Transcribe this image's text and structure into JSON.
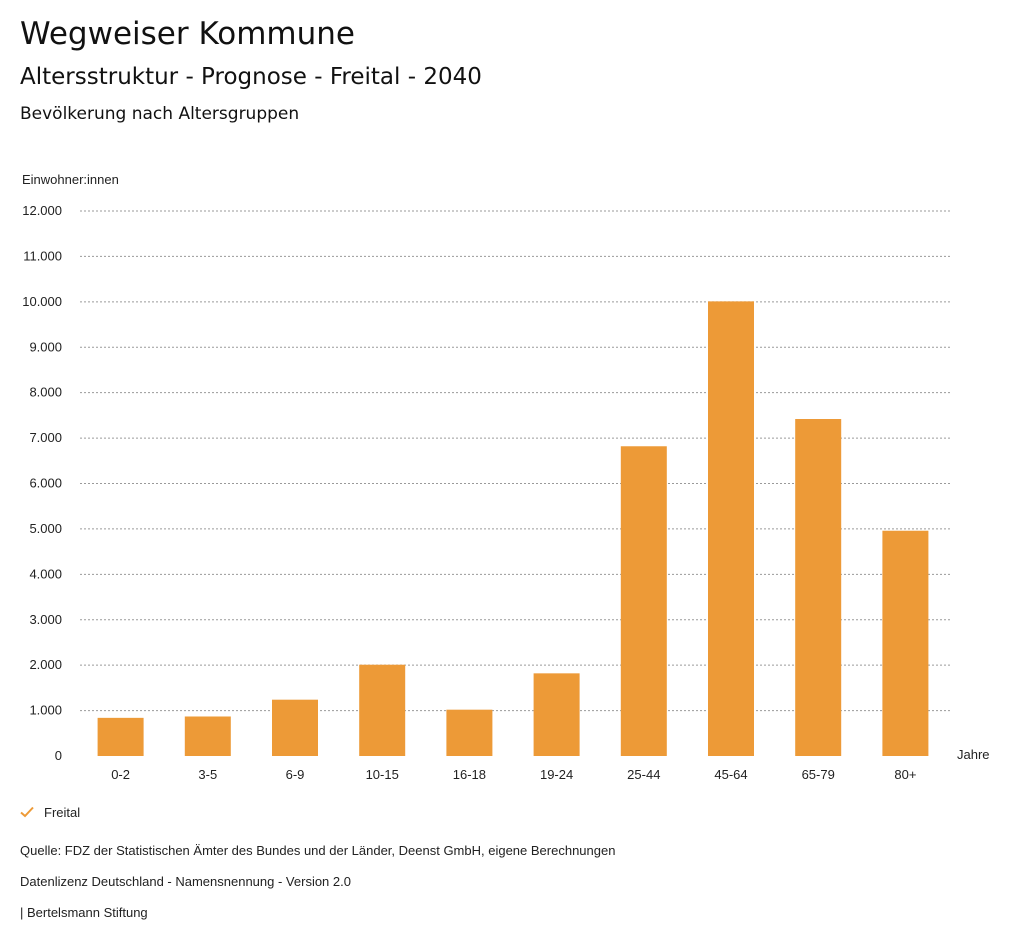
{
  "header": {
    "title": "Wegweiser Kommune",
    "subtitle": "Altersstruktur - Prognose - Freital - 2040",
    "chart_title": "Bevölkerung nach Altersgruppen"
  },
  "legend": {
    "label": "Freital",
    "color": "#ED9A37"
  },
  "footer": {
    "source": "Quelle: FDZ der Statistischen Ämter des Bundes und der Länder, Deenst GmbH, eigene Berechnungen",
    "license": "Datenlizenz Deutschland - Namensnennung - Version 2.0",
    "publisher": "| Bertelsmann Stiftung"
  },
  "chart_data": {
    "type": "bar",
    "title": "Bevölkerung nach Altersgruppen",
    "ylabel": "Einwohner:innen",
    "xlabel": "Jahre",
    "categories": [
      "0-2",
      "3-5",
      "6-9",
      "10-15",
      "16-18",
      "19-24",
      "25-44",
      "45-64",
      "65-79",
      "80+"
    ],
    "series": [
      {
        "name": "Freital",
        "color": "#ED9A37",
        "values": [
          840,
          870,
          1240,
          2010,
          1020,
          1820,
          6820,
          10010,
          7420,
          4960
        ]
      }
    ],
    "ylim": [
      0,
      12000
    ],
    "yticks": [
      0,
      1000,
      2000,
      3000,
      4000,
      5000,
      6000,
      7000,
      8000,
      9000,
      10000,
      11000,
      12000
    ],
    "ytick_labels": [
      "0",
      "1.000",
      "2.000",
      "3.000",
      "4.000",
      "5.000",
      "6.000",
      "7.000",
      "8.000",
      "9.000",
      "10.000",
      "11.000",
      "12.000"
    ],
    "grid": true
  }
}
